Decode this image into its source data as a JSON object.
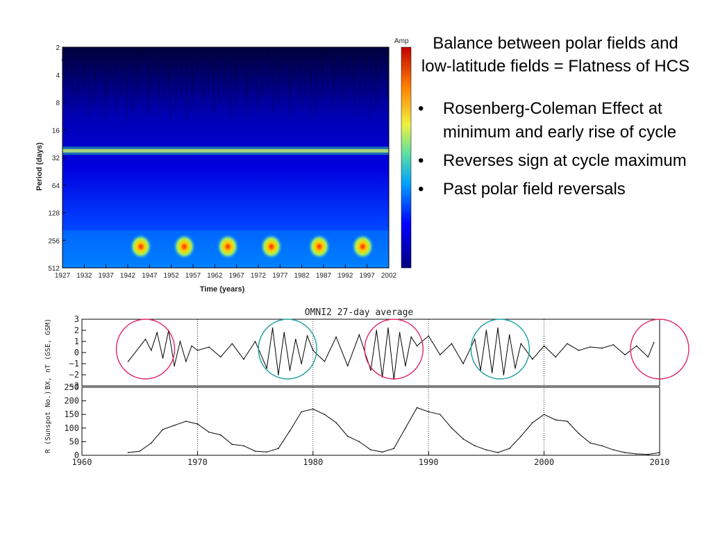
{
  "colors": {
    "ring_red": "#e0245e",
    "ring_teal": "#1b9ca0",
    "wavelet_bg": "#000080",
    "wavelet_band": "#c8f070",
    "hot_spot": "#ff0000"
  },
  "text_panel": {
    "title": "Balance between polar fields and low-latitude fields = Flatness of HCS",
    "bullets": [
      "Rosenberg-Coleman Effect at minimum and early rise of cycle",
      "Reverses sign at cycle maximum",
      "Past polar field reversals"
    ]
  },
  "chart_data": [
    {
      "type": "heatmap",
      "title": "",
      "xlabel": "Time (years)",
      "ylabel": "Period (days)",
      "colorbar_label": "Amp",
      "x_ticks": [
        "1927",
        "1932",
        "1937",
        "1942",
        "1947",
        "1952",
        "1957",
        "1962",
        "1967",
        "1972",
        "1977",
        "1982",
        "1987",
        "1992",
        "1997",
        "2002"
      ],
      "xlim": [
        1927,
        2002
      ],
      "y_ticks": [
        "2",
        "4",
        "8",
        "16",
        "32",
        "64",
        "128",
        "256",
        "512"
      ],
      "y_scale": "log2",
      "ylim": [
        2,
        512
      ],
      "hot_spots": [
        {
          "year": 1945,
          "period": 300
        },
        {
          "year": 1955,
          "period": 300
        },
        {
          "year": 1965,
          "period": 300
        },
        {
          "year": 1975,
          "period": 300
        },
        {
          "year": 1986,
          "period": 300
        },
        {
          "year": 1996,
          "period": 300
        }
      ],
      "band_period": 27
    },
    {
      "type": "line",
      "title": "OMNI2 27-day average",
      "ylabel": "BX, nT (GSE, GSM)",
      "y_ticks": [
        "3",
        "2",
        "1",
        "0",
        "−1",
        "−2",
        "−3"
      ],
      "ylim": [
        -3,
        3
      ],
      "xlim": [
        1960,
        2010
      ],
      "x": [
        1964,
        1965.5,
        1966,
        1966.5,
        1967,
        1967.5,
        1968,
        1968.5,
        1969,
        1969.5,
        1970,
        1971,
        1972,
        1973,
        1974,
        1975,
        1976,
        1976.5,
        1977,
        1977.5,
        1978,
        1978.5,
        1979,
        1979.5,
        1980,
        1981,
        1982,
        1983,
        1984,
        1985,
        1985.5,
        1986,
        1986.5,
        1987,
        1987.5,
        1988,
        1988.5,
        1989,
        1990,
        1991,
        1992,
        1993,
        1994,
        1994.5,
        1995,
        1995.5,
        1996,
        1996.5,
        1997,
        1997.5,
        1998,
        1999,
        2000,
        2001,
        2002,
        2003,
        2004,
        2005,
        2006,
        2007,
        2008,
        2009,
        2009.5
      ],
      "y": [
        -0.8,
        1.2,
        0.2,
        1.8,
        -0.5,
        2.0,
        -1.2,
        1.0,
        -0.8,
        0.6,
        0.2,
        0.5,
        -0.4,
        0.8,
        -0.6,
        1.0,
        -1.4,
        2.2,
        -2.0,
        1.8,
        -1.6,
        1.2,
        -1.0,
        1.5,
        0.2,
        -0.8,
        1.4,
        -1.2,
        1.6,
        -1.6,
        2.0,
        -2.2,
        2.2,
        -2.4,
        1.8,
        -1.2,
        1.4,
        0.6,
        1.5,
        -0.2,
        0.8,
        -1.0,
        1.2,
        -1.6,
        2.0,
        -1.8,
        2.2,
        -2.0,
        1.6,
        -1.4,
        0.8,
        -0.6,
        0.6,
        -0.4,
        0.8,
        0.2,
        0.5,
        0.4,
        0.7,
        -0.2,
        0.6,
        -0.4,
        0.9
      ],
      "series": [
        {
          "values_ref": "y"
        }
      ],
      "rings": [
        {
          "year": 1965.5,
          "color": "red"
        },
        {
          "year": 1977.8,
          "color": "teal"
        },
        {
          "year": 1987,
          "color": "red"
        },
        {
          "year": 1996.2,
          "color": "teal"
        },
        {
          "year": 2010,
          "color": "red"
        }
      ]
    },
    {
      "type": "line",
      "ylabel": "R (Sunspot No.)",
      "y_ticks": [
        "250",
        "200",
        "150",
        "100",
        "50",
        "0"
      ],
      "ylim": [
        0,
        250
      ],
      "xlabel": "",
      "x_ticks": [
        "1960",
        "1970",
        "1980",
        "1990",
        "2000",
        "2010"
      ],
      "xlim": [
        1960,
        2010
      ],
      "x": [
        1964,
        1965,
        1966,
        1967,
        1968,
        1969,
        1970,
        1971,
        1972,
        1973,
        1974,
        1975,
        1976,
        1977,
        1978,
        1979,
        1980,
        1981,
        1982,
        1983,
        1984,
        1985,
        1986,
        1987,
        1988,
        1989,
        1990,
        1991,
        1992,
        1993,
        1994,
        1995,
        1996,
        1997,
        1998,
        1999,
        2000,
        2001,
        2002,
        2003,
        2004,
        2005,
        2006,
        2007,
        2008,
        2009,
        2010
      ],
      "y": [
        10,
        15,
        45,
        95,
        110,
        125,
        115,
        85,
        75,
        40,
        35,
        15,
        12,
        25,
        90,
        160,
        170,
        150,
        120,
        70,
        50,
        20,
        12,
        25,
        100,
        175,
        160,
        150,
        100,
        60,
        35,
        20,
        10,
        25,
        70,
        120,
        150,
        130,
        125,
        80,
        45,
        35,
        20,
        10,
        5,
        3,
        10
      ],
      "vlines": [
        1970,
        1980,
        1990,
        2000,
        2010
      ]
    }
  ]
}
